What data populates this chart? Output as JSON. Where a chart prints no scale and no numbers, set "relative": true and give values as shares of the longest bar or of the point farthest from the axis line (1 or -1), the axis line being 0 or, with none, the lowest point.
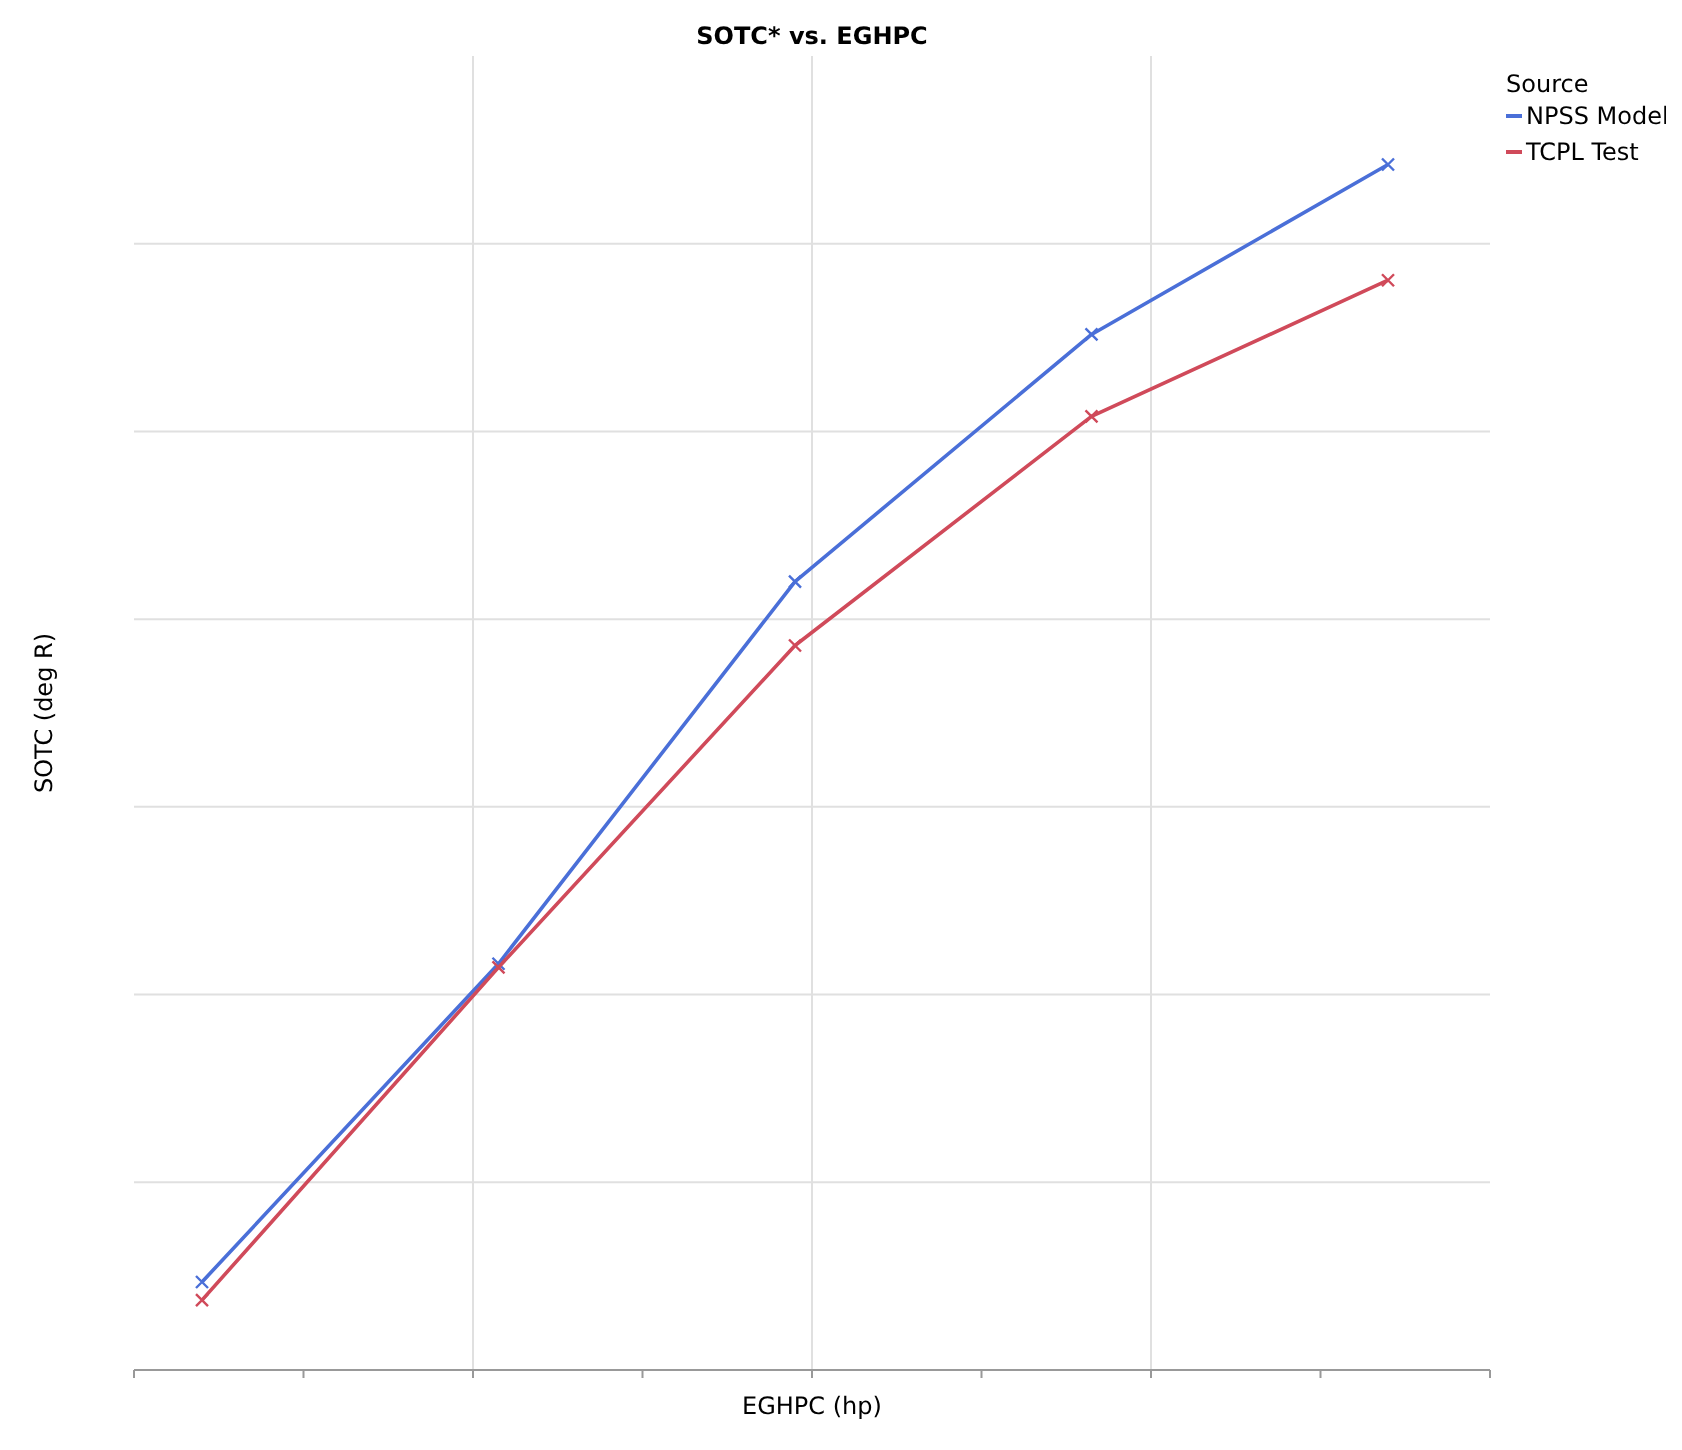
{
  "chart_data": {
    "type": "line",
    "title": "SOTC* vs. EGHPC",
    "xlabel": "EGHPC (hp)",
    "ylabel": "SOTC (deg R)",
    "legend_title": "Source",
    "relative": true,
    "grid": true,
    "legend": "top right",
    "marker": "cross",
    "line_style": "solid",
    "categories": [
      null,
      null,
      null,
      null,
      null
    ],
    "series": [
      {
        "name": "NPSS Model",
        "color": "#4a6fd8",
        "values": [
          0.073,
          0.337,
          0.654,
          0.859,
          1
        ]
      },
      {
        "name": "TCPL Test",
        "color": "#d04a5a",
        "values": [
          0.058,
          0.334,
          0.601,
          0.791,
          0.904
        ]
      }
    ]
  }
}
